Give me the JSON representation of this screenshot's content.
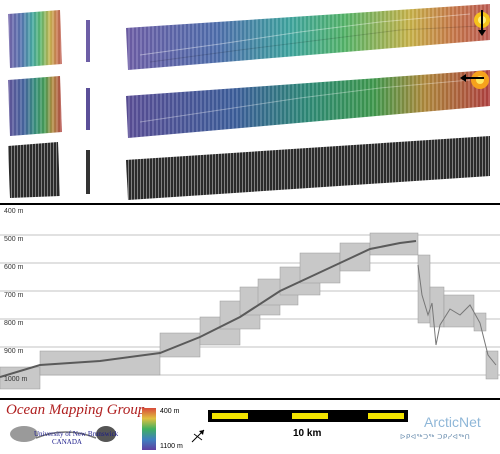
{
  "depth_axis": {
    "labels": [
      "400 m",
      "500 m",
      "600 m",
      "700 m",
      "800 m",
      "900 m",
      "1000 m"
    ]
  },
  "colorbar": {
    "top_label": "400 m",
    "bottom_label": "1100 m"
  },
  "scale_bar": {
    "label": "10 km"
  },
  "logos": {
    "group_name": "Ocean Mapping Group",
    "university": "University of New Brunswick",
    "country": "CANADA",
    "partner": "ArcticNet",
    "partner_syllabics": "ᐅᑭᐊᖅᑐᖅ ᑐᑭᓯᐊᖅᑎ"
  },
  "icons": {
    "north_arrow": "north-arrow-icon",
    "sun_top": "sun-illumination-icon",
    "sun_mid": "sun-illumination-icon"
  }
}
